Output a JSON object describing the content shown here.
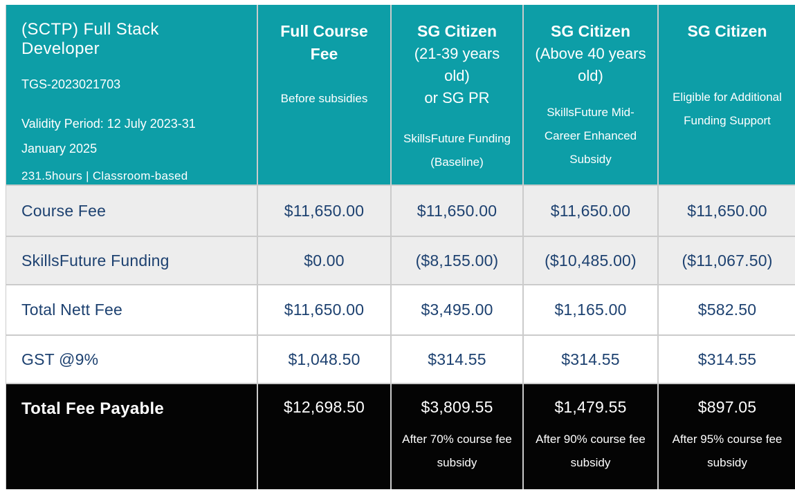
{
  "colors": {
    "header_teal": "#0D9EA7",
    "text_navy": "#1D4170",
    "row_gray": "#EDEDED",
    "total_black": "#040404",
    "grid_border": "#CBCBCB"
  },
  "course": {
    "title": "(SCTP) Full Stack Developer",
    "code": "TGS-2023021703",
    "validity": "Validity Period: 12 July 2023-31 January 2025",
    "duration": "231.5hours | Classroom-based"
  },
  "columns": [
    {
      "title": "Full Course Fee",
      "subtitle": "",
      "note": "Before subsidies"
    },
    {
      "title": "SG Citizen",
      "subtitle": "(21-39 years old)\nor SG PR",
      "note": "SkillsFuture Funding (Baseline)"
    },
    {
      "title": "SG Citizen",
      "subtitle": "(Above 40 years old)",
      "note": "SkillsFuture Mid-Career Enhanced Subsidy"
    },
    {
      "title": "SG Citizen",
      "subtitle": "",
      "note": "Eligible for Additional Funding Support"
    }
  ],
  "rows": [
    {
      "label": "Course Fee",
      "values": [
        "$11,650.00",
        "$11,650.00",
        "$11,650.00",
        "$11,650.00"
      ]
    },
    {
      "label": "SkillsFuture Funding",
      "values": [
        "$0.00",
        "($8,155.00)",
        "($10,485.00)",
        "($11,067.50)"
      ]
    },
    {
      "label": "Total Nett Fee",
      "values": [
        "$11,650.00",
        "$3,495.00",
        "$1,165.00",
        "$582.50"
      ]
    },
    {
      "label": "GST @9%",
      "values": [
        "$1,048.50",
        "$314.55",
        "$314.55",
        "$314.55"
      ]
    }
  ],
  "total": {
    "label": "Total Fee Payable",
    "values": [
      "$12,698.50",
      "$3,809.55",
      "$1,479.55",
      "$897.05"
    ],
    "notes": [
      "",
      "After 70% course fee subsidy",
      "After 90% course fee subsidy",
      "After 95% course fee subsidy"
    ]
  }
}
